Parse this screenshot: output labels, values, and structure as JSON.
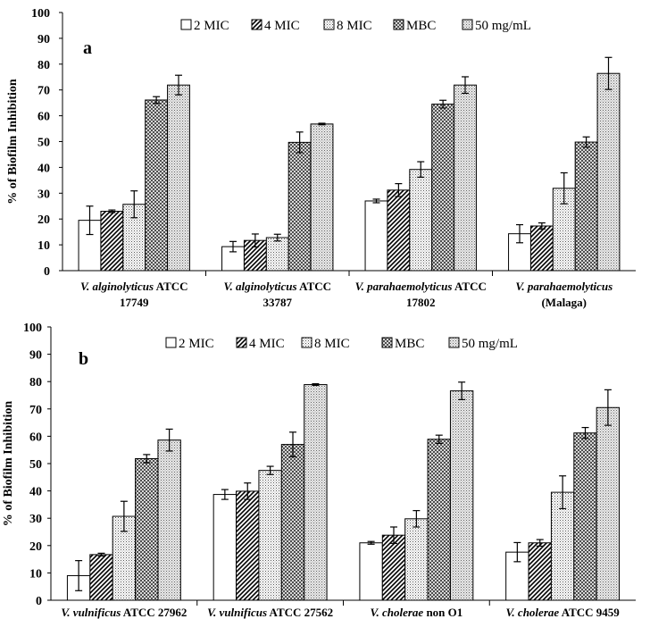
{
  "chart_data": [
    {
      "type": "bar",
      "panel_label": "a",
      "ylabel": "% of Biofilm Inhibition",
      "ylim": [
        0,
        100
      ],
      "yticks": [
        0,
        10,
        20,
        30,
        40,
        50,
        60,
        70,
        80,
        90,
        100
      ],
      "legend": [
        "2 MIC",
        "4 MIC",
        "8 MIC",
        "MBC",
        "50 mg/mL"
      ],
      "legend_position": "top",
      "categories": [
        {
          "italic": "V. alginolyticus",
          "rest": " ATCC",
          "line2": "17749"
        },
        {
          "italic": "V. alginolyticus",
          "rest": " ATCC",
          "line2": "33787"
        },
        {
          "italic": "V. parahaemolyticus",
          "rest": " ATCC",
          "line2": "17802"
        },
        {
          "italic": "V. parahaemolyticus",
          "rest": "",
          "line2": "(Malaga)"
        }
      ],
      "series": [
        {
          "name": "2 MIC",
          "values": [
            19.5,
            9.3,
            27,
            14.3
          ],
          "errors": [
            5.5,
            2,
            0.7,
            3.5
          ]
        },
        {
          "name": "4 MIC",
          "values": [
            23,
            11.7,
            31.2,
            17.3
          ],
          "errors": [
            0.5,
            2.5,
            2.5,
            1.2
          ]
        },
        {
          "name": "8 MIC",
          "values": [
            25.7,
            12.8,
            39.2,
            31.9
          ],
          "errors": [
            5.2,
            1.3,
            3,
            6
          ]
        },
        {
          "name": "MBC",
          "values": [
            66.1,
            49.7,
            64.5,
            49.8
          ],
          "errors": [
            1.3,
            4,
            1.5,
            2
          ]
        },
        {
          "name": "50 mg/mL",
          "values": [
            71.9,
            56.8,
            71.9,
            76.4
          ],
          "errors": [
            3.8,
            0.3,
            3.2,
            6.2
          ]
        }
      ]
    },
    {
      "type": "bar",
      "panel_label": "b",
      "ylabel": "% of Biofilm Inhibition",
      "ylim": [
        0,
        100
      ],
      "yticks": [
        0,
        10,
        20,
        30,
        40,
        50,
        60,
        70,
        80,
        90,
        100
      ],
      "legend": [
        "2 MIC",
        "4 MIC",
        "8 MIC",
        "MBC",
        "50 mg/mL"
      ],
      "legend_position": "top",
      "categories": [
        {
          "italic": "V. vulnificus",
          "rest": " ATCC 27962",
          "line2": ""
        },
        {
          "italic": "V. vulnificus",
          "rest": " ATCC 27562",
          "line2": ""
        },
        {
          "italic": "V. cholerae",
          "rest": " non O1",
          "line2": ""
        },
        {
          "italic": "V. cholerae",
          "rest": " ATCC 9459",
          "line2": ""
        }
      ],
      "series": [
        {
          "name": "2 MIC",
          "values": [
            9,
            38.7,
            21,
            17.6
          ],
          "errors": [
            5.5,
            1.8,
            0.5,
            3.5
          ]
        },
        {
          "name": "4 MIC",
          "values": [
            16.7,
            39.9,
            23.8,
            21
          ],
          "errors": [
            0.5,
            3,
            3,
            1.2
          ]
        },
        {
          "name": "8 MIC",
          "values": [
            30.7,
            47.5,
            29.8,
            39.5
          ],
          "errors": [
            5.5,
            1.5,
            3,
            6
          ]
        },
        {
          "name": "MBC",
          "values": [
            51.8,
            57,
            58.9,
            61.2
          ],
          "errors": [
            1.5,
            4.5,
            1.5,
            2
          ]
        },
        {
          "name": "50 mg/mL",
          "values": [
            58.6,
            78.9,
            76.6,
            70.5
          ],
          "errors": [
            4,
            0.3,
            3.2,
            6.5
          ]
        }
      ]
    }
  ]
}
